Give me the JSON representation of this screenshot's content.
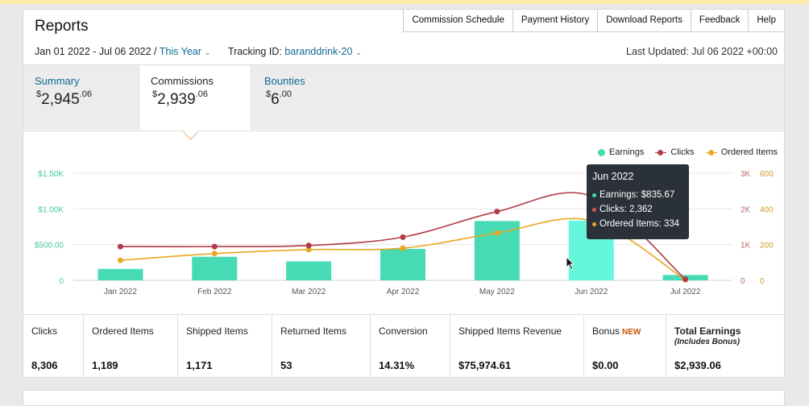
{
  "header": {
    "title": "Reports",
    "actions": [
      "Commission Schedule",
      "Payment History",
      "Download Reports",
      "Feedback",
      "Help"
    ]
  },
  "filters": {
    "date_range": "Jan 01 2022 - Jul 06 2022 /",
    "period": "This Year",
    "tracking_label": "Tracking ID:",
    "tracking_id": "baranddrink-20",
    "last_updated": "Last Updated: Jul 06 2022 +00:00"
  },
  "tabs": [
    {
      "label": "Summary",
      "currency": "$",
      "whole": "2,945",
      "cents": ".06"
    },
    {
      "label": "Commissions",
      "currency": "$",
      "whole": "2,939",
      "cents": ".06"
    },
    {
      "label": "Bounties",
      "currency": "$",
      "whole": "6",
      "cents": ".00"
    }
  ],
  "legend": {
    "earnings": "Earnings",
    "clicks": "Clicks",
    "ordered": "Ordered Items"
  },
  "colors": {
    "earnings": "#46dbb4",
    "earnings_hover": "#64f7dc",
    "clicks": "#b23a48",
    "ordered": "#e8a822",
    "link": "#0f6a94"
  },
  "chart_data": {
    "type": "bar",
    "categories": [
      "Jan 2022",
      "Feb 2022",
      "Mar 2022",
      "Apr 2022",
      "May 2022",
      "Jun 2022",
      "Jul 2022"
    ],
    "y_left": {
      "ticks": [
        "0",
        "$500.00",
        "$1.00K",
        "$1.50K"
      ],
      "range": [
        0,
        1500
      ]
    },
    "y_right_clicks": {
      "ticks": [
        "0",
        "1K",
        "2K",
        "3K"
      ],
      "range": [
        0,
        3000
      ]
    },
    "y_right_ordered": {
      "ticks": [
        "0",
        "200",
        "400",
        "600"
      ],
      "range": [
        0,
        600
      ]
    },
    "series": [
      {
        "name": "Earnings",
        "kind": "bar",
        "values": [
          160,
          330,
          265,
          440,
          830,
          835.67,
          75
        ]
      },
      {
        "name": "Clicks",
        "kind": "line",
        "values": [
          945,
          945,
          975,
          1210,
          1925,
          2362,
          30
        ]
      },
      {
        "name": "Ordered Items",
        "kind": "line",
        "values": [
          112,
          150,
          172,
          180,
          265,
          334,
          3
        ]
      }
    ]
  },
  "tooltip": {
    "title": "Jun 2022",
    "earnings": "Earnings: $835.67",
    "clicks": "Clicks: 2,362",
    "ordered": "Ordered Items: 334"
  },
  "stats": [
    {
      "label": "Clicks",
      "value": "8,306"
    },
    {
      "label": "Ordered Items",
      "value": "1,189"
    },
    {
      "label": "Shipped Items",
      "value": "1,171"
    },
    {
      "label": "Returned Items",
      "value": "53"
    },
    {
      "label": "Conversion",
      "value": "14.31%"
    },
    {
      "label": "Shipped Items Revenue",
      "value": "$75,974.61"
    },
    {
      "label": "Bonus",
      "badge": "NEW",
      "value": "$0.00"
    },
    {
      "label": "Total Earnings",
      "sub": "(Includes Bonus)",
      "value": "$2,939.06"
    }
  ]
}
